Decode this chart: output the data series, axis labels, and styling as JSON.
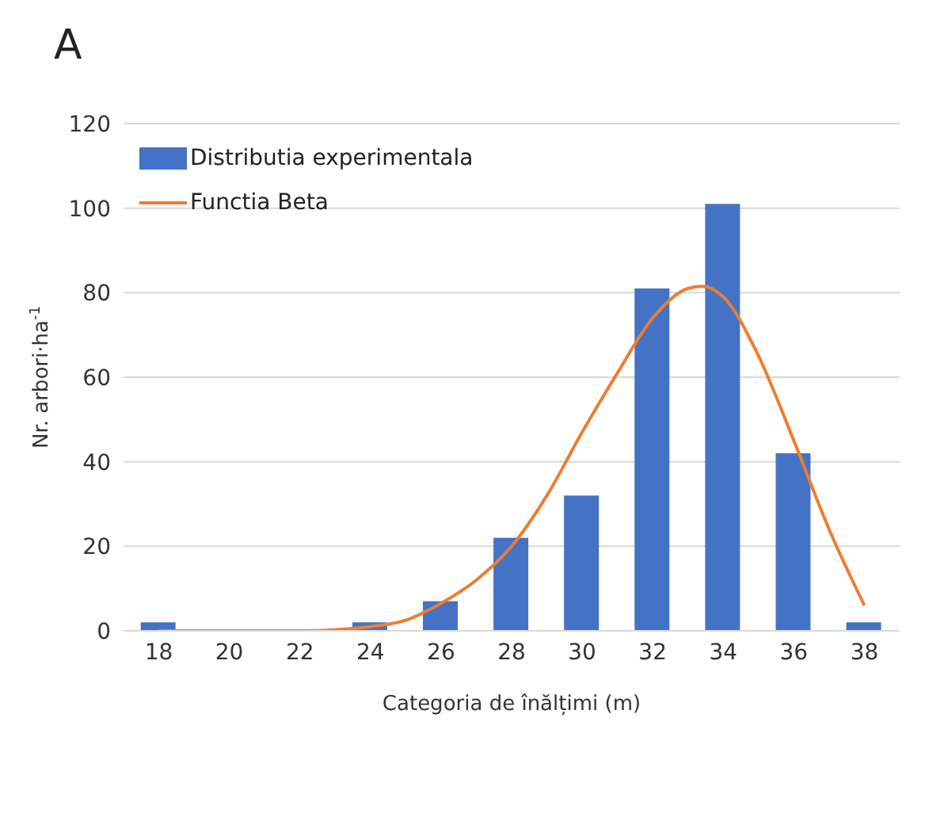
{
  "chart_data": {
    "type": "bar",
    "title": "A",
    "xlabel": "Categoria de înălțimi (m)",
    "ylabel": "Nr. arbori·ha$^{-1}$",
    "x": [
      18,
      20,
      22,
      24,
      26,
      28,
      30,
      32,
      34,
      36,
      38
    ],
    "series": [
      {
        "name": "Distributia experimentala",
        "color": "#4472c4",
        "values": [
          2,
          0,
          0,
          2,
          7,
          22,
          32,
          81,
          101,
          42,
          2
        ]
      },
      {
        "name": "Functia Beta",
        "type": "line",
        "color": "#ed7d31",
        "x": [
          18,
          20,
          22,
          24,
          25,
          26,
          27,
          28,
          29,
          30,
          31,
          32,
          33,
          33.4,
          34,
          35,
          36,
          37,
          38
        ],
        "values": [
          0,
          0,
          0,
          1,
          2.5,
          6.5,
          12,
          20,
          32,
          47,
          61,
          74,
          81,
          81.5,
          79,
          65,
          45,
          24,
          6
        ]
      }
    ],
    "xlim": [
      17,
      39
    ],
    "xticks": [
      18,
      20,
      22,
      24,
      26,
      28,
      30,
      32,
      34,
      36,
      38
    ],
    "ylim": [
      0,
      120
    ],
    "yticks": [
      0,
      20,
      40,
      60,
      80,
      100,
      120
    ],
    "grid": "y",
    "legend": "top left",
    "marker": "none"
  }
}
